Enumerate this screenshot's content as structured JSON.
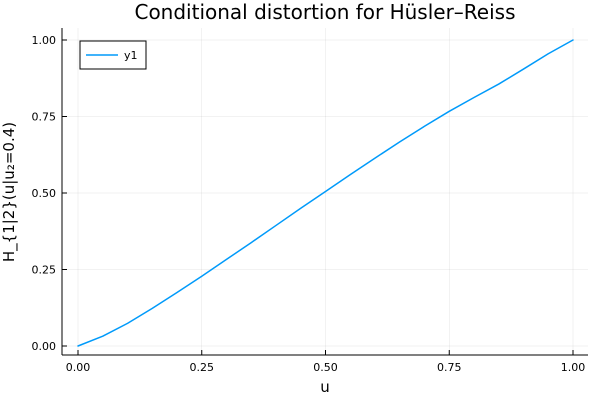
{
  "chart_data": {
    "type": "line",
    "title": "Conditional distortion for Hüsler–Reiss",
    "xlabel": "u",
    "ylabel": "H_{1|2}(u|u₂=0.4)",
    "xlim": [
      0,
      1
    ],
    "ylim": [
      0,
      1
    ],
    "xticks": [
      0,
      0.25,
      0.5,
      0.75,
      1
    ],
    "xtick_labels": [
      "0.00",
      "0.25",
      "0.50",
      "0.75",
      "1.00"
    ],
    "yticks": [
      0,
      0.25,
      0.5,
      0.75,
      1
    ],
    "ytick_labels": [
      "0.00",
      "0.25",
      "0.50",
      "0.75",
      "1.00"
    ],
    "grid": true,
    "legend_position": "top-left",
    "series": [
      {
        "name": "y1",
        "color": "#009AFA",
        "x": [
          0,
          0.05,
          0.1,
          0.15,
          0.2,
          0.25,
          0.3,
          0.35,
          0.4,
          0.45,
          0.5,
          0.55,
          0.6,
          0.65,
          0.7,
          0.75,
          0.8,
          0.85,
          0.9,
          0.95,
          1.0
        ],
        "y": [
          0,
          0.032,
          0.074,
          0.123,
          0.175,
          0.228,
          0.283,
          0.338,
          0.394,
          0.45,
          0.505,
          0.56,
          0.614,
          0.667,
          0.718,
          0.767,
          0.812,
          0.856,
          0.905,
          0.955,
          1.0
        ]
      }
    ]
  }
}
